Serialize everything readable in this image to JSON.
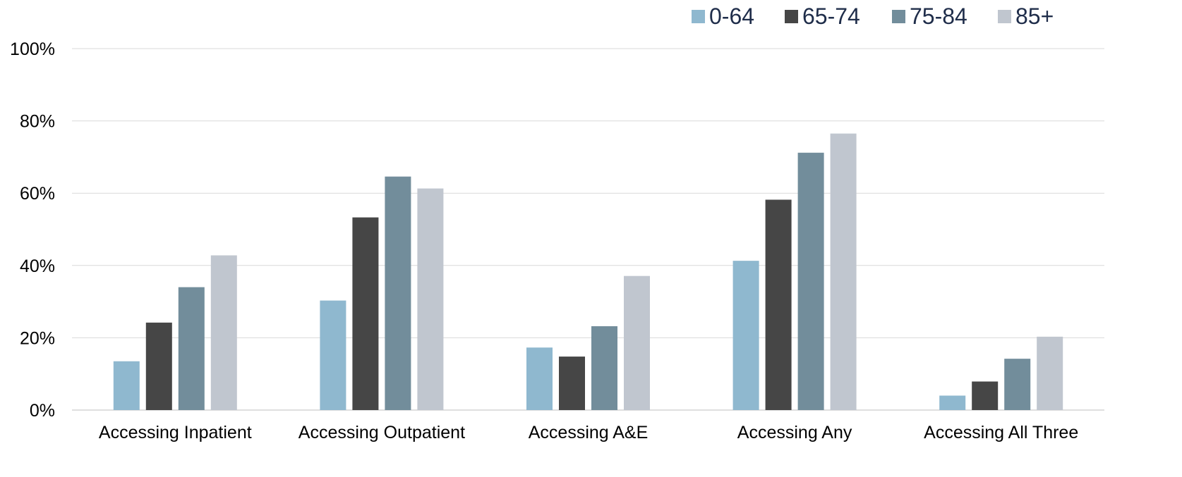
{
  "chart_data": {
    "type": "bar",
    "title": "",
    "xlabel": "",
    "ylabel": "",
    "categories": [
      "Accessing Inpatient",
      "Accessing Outpatient",
      "Accessing A&E",
      "Accessing Any",
      "Accessing All Three"
    ],
    "series": [
      {
        "name": "0-64",
        "color": "#8fb8cf",
        "values": [
          13.5,
          30.3,
          17.3,
          41.3,
          4.0
        ]
      },
      {
        "name": "65-74",
        "color": "#464646",
        "values": [
          24.2,
          53.3,
          14.8,
          58.2,
          7.9
        ]
      },
      {
        "name": "75-84",
        "color": "#728d9b",
        "values": [
          34.0,
          64.6,
          23.2,
          71.2,
          14.2
        ]
      },
      {
        "name": "85+",
        "color": "#c0c6cf",
        "values": [
          42.8,
          61.3,
          37.1,
          76.5,
          20.3
        ]
      }
    ],
    "ylim": [
      0,
      100
    ],
    "yticks": [
      0,
      20,
      40,
      60,
      80,
      100
    ],
    "ytick_labels": [
      "0%",
      "20%",
      "40%",
      "60%",
      "80%",
      "100%"
    ],
    "grid": true,
    "legend_position": "top-right"
  }
}
